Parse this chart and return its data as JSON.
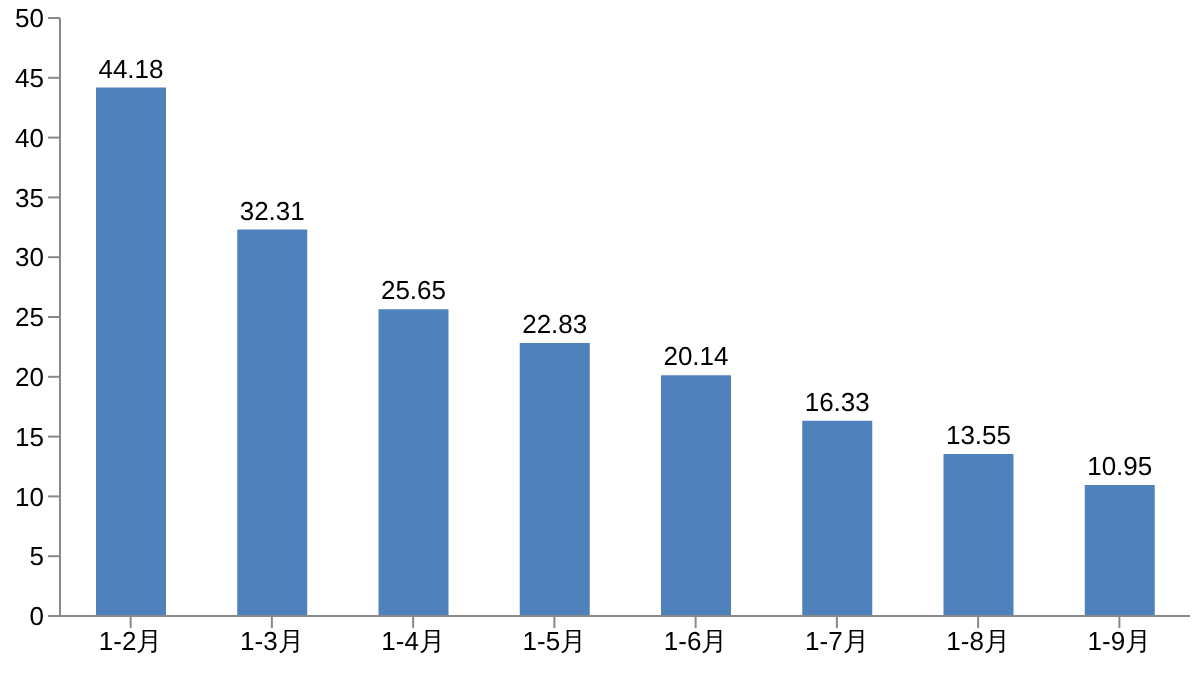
{
  "chart_data": {
    "type": "bar",
    "categories": [
      "1-2月",
      "1-3月",
      "1-4月",
      "1-5月",
      "1-6月",
      "1-7月",
      "1-8月",
      "1-9月"
    ],
    "values": [
      44.18,
      32.31,
      25.65,
      22.83,
      20.14,
      16.33,
      13.55,
      10.95
    ],
    "color": "#4f81bd",
    "ylim": [
      0,
      50
    ],
    "yticks": [
      0,
      5,
      10,
      15,
      20,
      25,
      30,
      35,
      40,
      45,
      50
    ],
    "grid": false,
    "data_labels": true
  }
}
